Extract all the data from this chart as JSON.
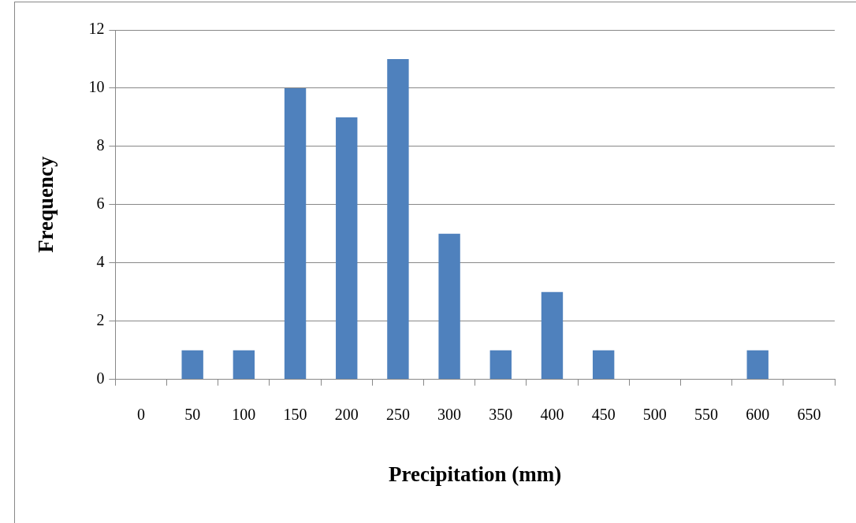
{
  "chart_data": {
    "type": "bar",
    "xlabel": "Precipitation (mm)",
    "ylabel": "Frequency",
    "categories": [
      "0",
      "50",
      "100",
      "150",
      "200",
      "250",
      "300",
      "350",
      "400",
      "450",
      "500",
      "550",
      "600",
      "650"
    ],
    "values": [
      0,
      1,
      1,
      10,
      9,
      11,
      5,
      1,
      3,
      1,
      0,
      0,
      1,
      0
    ],
    "color": "#4f81bd",
    "ylim": [
      0,
      12
    ],
    "yticks": [
      0,
      2,
      4,
      6,
      8,
      10,
      12
    ],
    "grid": "y",
    "legend": false
  }
}
